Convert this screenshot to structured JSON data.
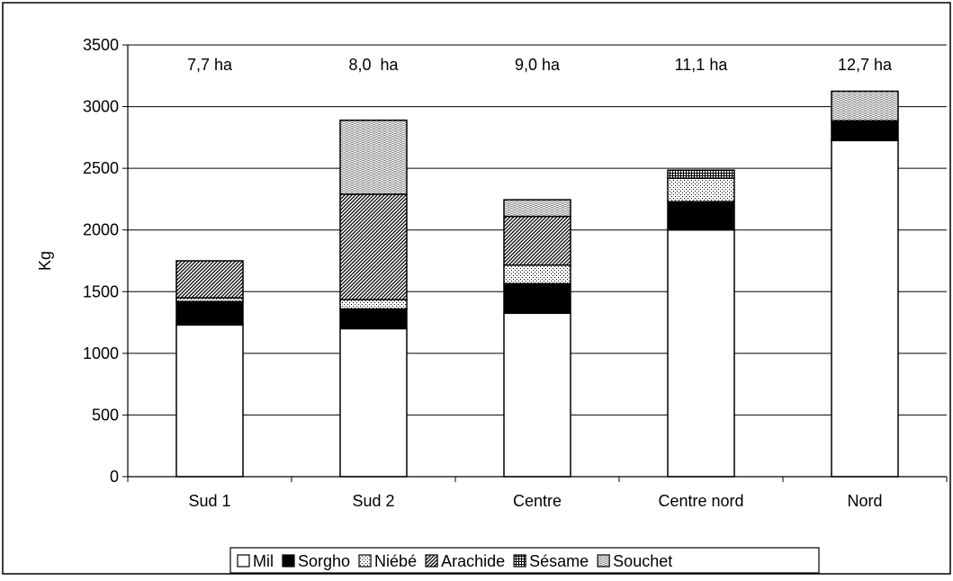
{
  "chart_data": {
    "type": "bar",
    "stacked": true,
    "title": "",
    "xlabel": "",
    "ylabel": "Kg",
    "ylim": [
      0,
      3500
    ],
    "yticks": [
      0,
      500,
      1000,
      1500,
      2000,
      2500,
      3000,
      3500
    ],
    "grid": true,
    "legend_position": "bottom",
    "categories": [
      "Sud 1",
      "Sud 2",
      "Centre",
      "Centre nord",
      "Nord"
    ],
    "annotations": [
      "7,7 ha",
      "8,0  ha",
      "9,0 ha",
      "11,1 ha",
      "12,7 ha"
    ],
    "series": [
      {
        "name": "Mil",
        "pattern": "white",
        "values": [
          1230,
          1200,
          1325,
          2000,
          2725
        ]
      },
      {
        "name": "Sorgho",
        "pattern": "black",
        "values": [
          190,
          160,
          240,
          230,
          160
        ]
      },
      {
        "name": "Niébé",
        "pattern": "dots",
        "values": [
          30,
          75,
          150,
          190,
          0
        ]
      },
      {
        "name": "Arachide",
        "pattern": "diag",
        "values": [
          300,
          855,
          395,
          0,
          0
        ]
      },
      {
        "name": "Sésame",
        "pattern": "grid",
        "values": [
          0,
          0,
          0,
          65,
          0
        ]
      },
      {
        "name": "Souchet",
        "pattern": "fine",
        "values": [
          0,
          600,
          135,
          0,
          240
        ]
      }
    ]
  }
}
